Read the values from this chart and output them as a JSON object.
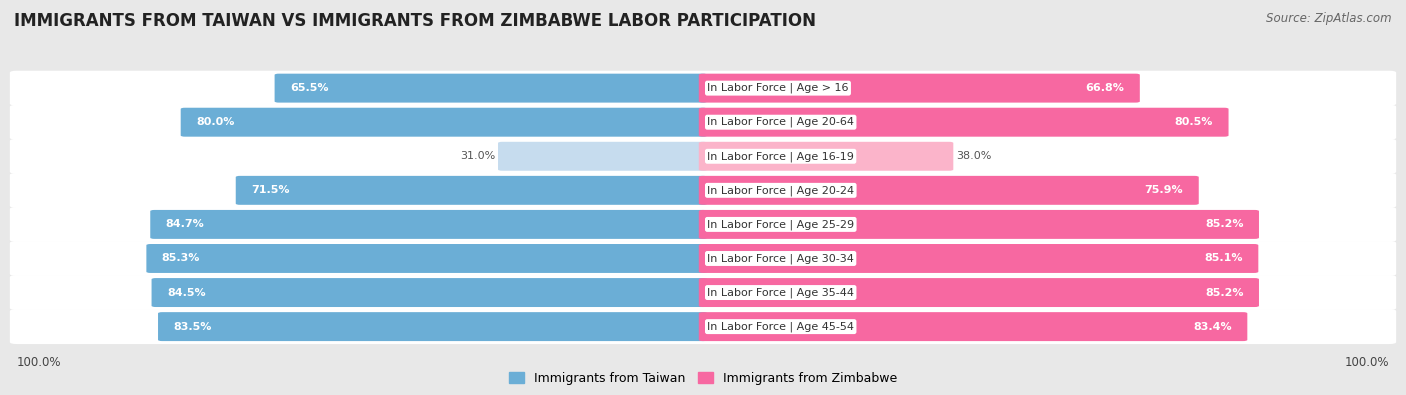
{
  "title": "IMMIGRANTS FROM TAIWAN VS IMMIGRANTS FROM ZIMBABWE LABOR PARTICIPATION",
  "source": "Source: ZipAtlas.com",
  "categories": [
    "In Labor Force | Age > 16",
    "In Labor Force | Age 20-64",
    "In Labor Force | Age 16-19",
    "In Labor Force | Age 20-24",
    "In Labor Force | Age 25-29",
    "In Labor Force | Age 30-34",
    "In Labor Force | Age 35-44",
    "In Labor Force | Age 45-54"
  ],
  "taiwan_values": [
    65.5,
    80.0,
    31.0,
    71.5,
    84.7,
    85.3,
    84.5,
    83.5
  ],
  "zimbabwe_values": [
    66.8,
    80.5,
    38.0,
    75.9,
    85.2,
    85.1,
    85.2,
    83.4
  ],
  "taiwan_color": "#6baed6",
  "taiwan_color_light": "#c6dcee",
  "zimbabwe_color": "#f768a1",
  "zimbabwe_color_light": "#fbb4ca",
  "background_color": "#e8e8e8",
  "legend_taiwan": "Immigrants from Taiwan",
  "legend_zimbabwe": "Immigrants from Zimbabwe",
  "max_value": 100.0,
  "title_fontsize": 12,
  "label_fontsize": 8,
  "value_fontsize": 8,
  "footer_fontsize": 8.5
}
